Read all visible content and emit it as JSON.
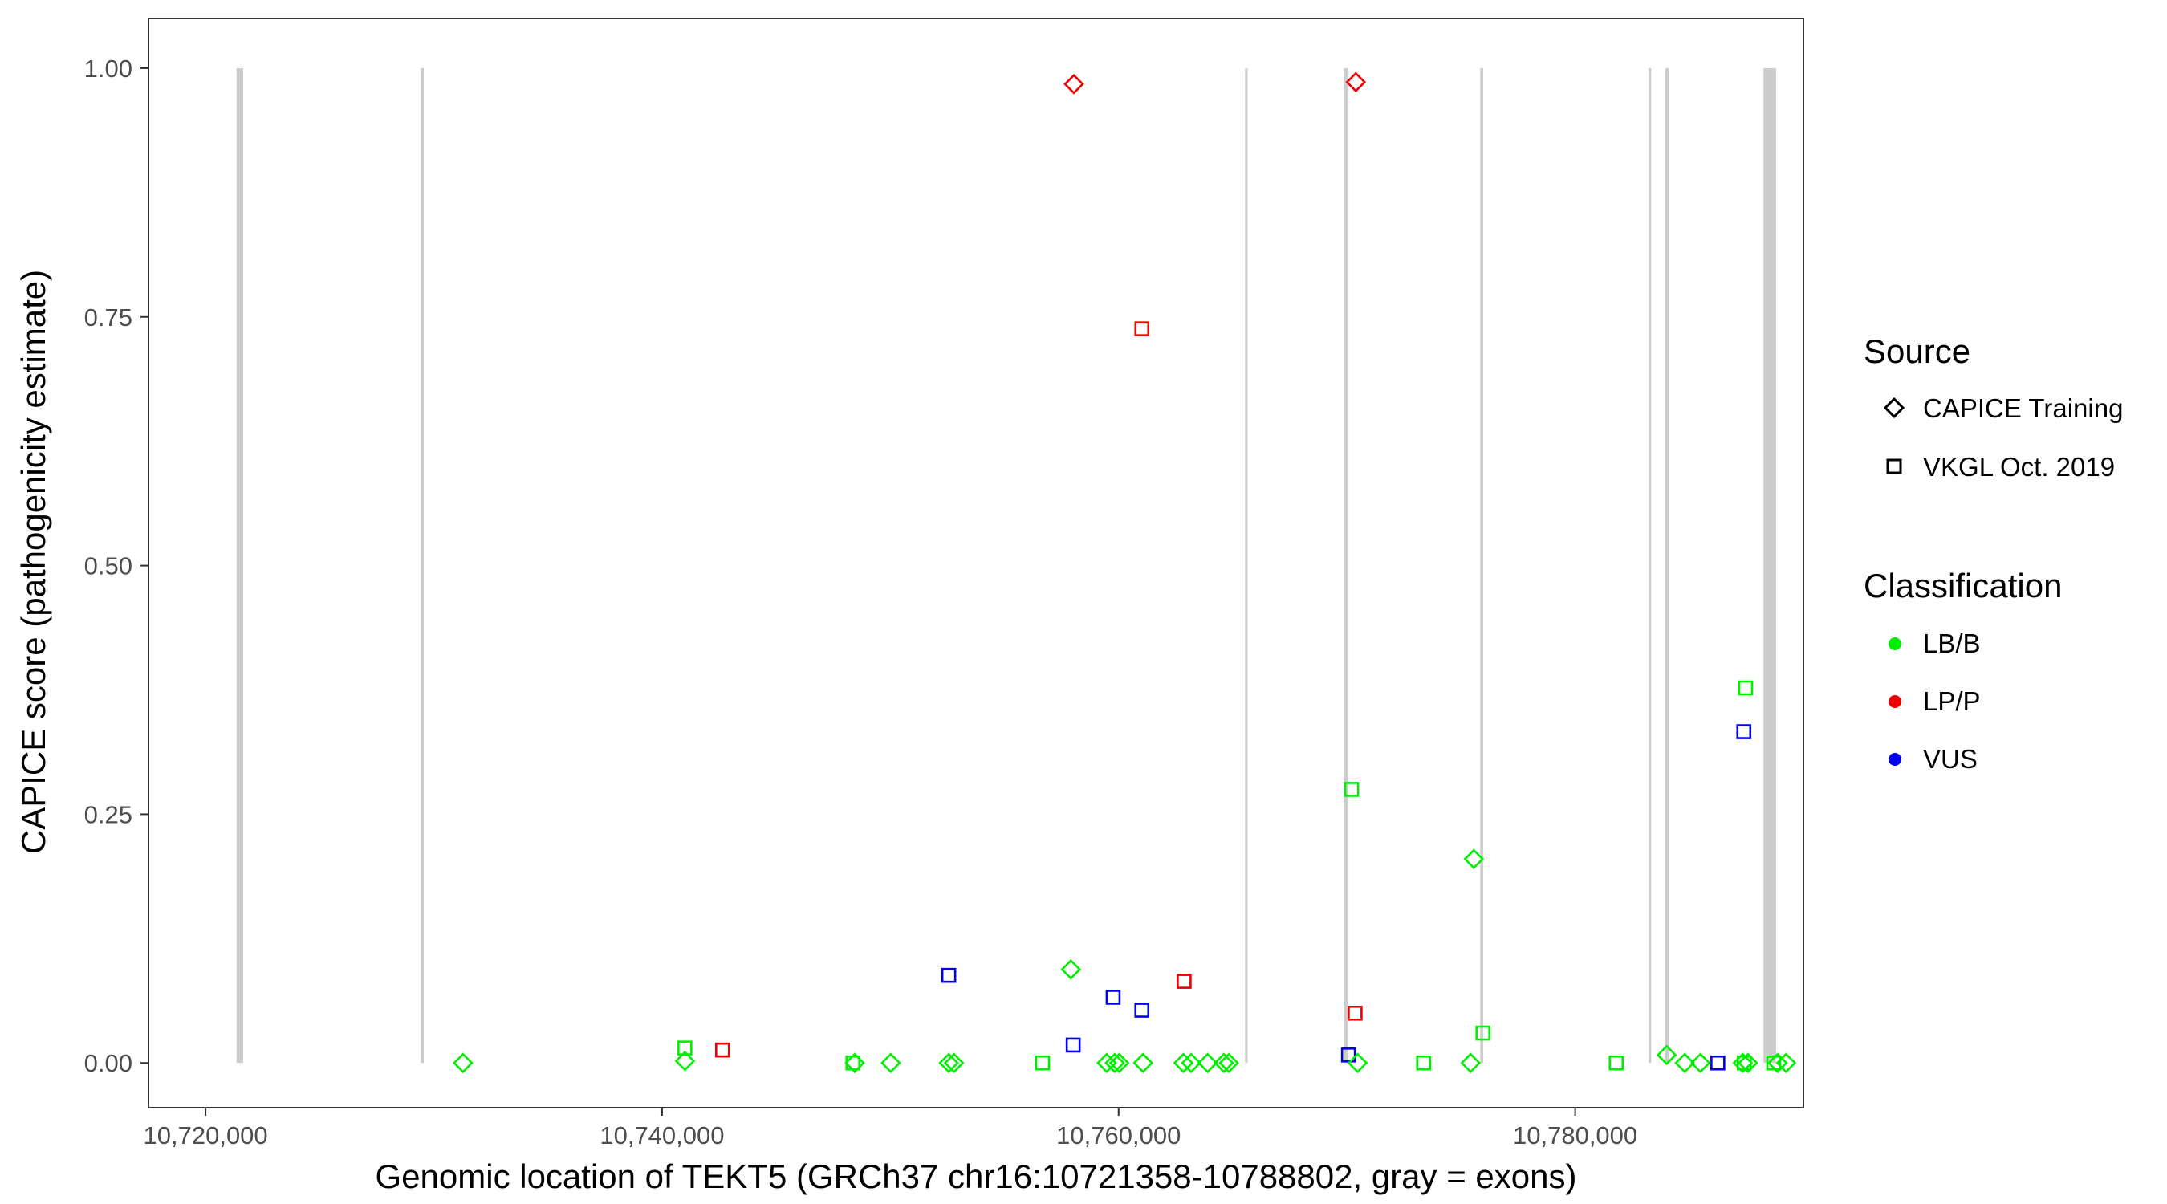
{
  "chart_data": {
    "type": "scatter",
    "xlabel": "Genomic location of TEKT5 (GRCh37 chr16:10721358-10788802, gray = exons)",
    "ylabel": "CAPICE score (pathogenicity estimate)",
    "xlim": [
      10717500,
      10790000
    ],
    "ylim": [
      -0.045,
      1.05
    ],
    "x_ticks": [
      10720000,
      10740000,
      10760000,
      10780000
    ],
    "x_tick_labels": [
      "10,720,000",
      "10,740,000",
      "10,760,000",
      "10,780,000"
    ],
    "y_ticks": [
      0,
      0.25,
      0.5,
      0.75,
      1.0
    ],
    "y_tick_labels": [
      "0.00",
      "0.25",
      "0.50",
      "0.75",
      "1.00"
    ],
    "grid": false,
    "exons": [
      {
        "start": 10721358,
        "end": 10721650
      },
      {
        "start": 10729430,
        "end": 10729560
      },
      {
        "start": 10765540,
        "end": 10765650
      },
      {
        "start": 10769860,
        "end": 10770070
      },
      {
        "start": 10775840,
        "end": 10775970
      },
      {
        "start": 10783220,
        "end": 10783330
      },
      {
        "start": 10783950,
        "end": 10784110
      },
      {
        "start": 10788250,
        "end": 10788802
      }
    ],
    "legend": {
      "placement": "right",
      "source": {
        "title": "Source",
        "items": [
          {
            "label": "CAPICE Training",
            "shape": "diamond"
          },
          {
            "label": "VKGL Oct. 2019",
            "shape": "square"
          }
        ]
      },
      "classification": {
        "title": "Classification",
        "items": [
          {
            "label": "LB/B",
            "color": "#00ee00"
          },
          {
            "label": "LP/P",
            "color": "#ee0000"
          },
          {
            "label": "VUS",
            "color": "#0000ee"
          }
        ]
      }
    },
    "colors": {
      "LB/B": "#00ee00",
      "LP/P": "#ee0000",
      "VUS": "#0000ee",
      "exon": "#cccccc"
    },
    "series": [
      {
        "source": "CAPICE Training",
        "classification": "LP/P",
        "points": [
          [
            10758040,
            0.984
          ],
          [
            10770390,
            0.986
          ]
        ]
      },
      {
        "source": "VKGL Oct. 2019",
        "classification": "LP/P",
        "points": [
          [
            10761020,
            0.738
          ],
          [
            10742650,
            0.013
          ],
          [
            10762870,
            0.082
          ],
          [
            10770360,
            0.05
          ]
        ]
      },
      {
        "source": "VKGL Oct. 2019",
        "classification": "VUS",
        "points": [
          [
            10752560,
            0.088
          ],
          [
            10759760,
            0.066
          ],
          [
            10761020,
            0.053
          ],
          [
            10758010,
            0.018
          ],
          [
            10770070,
            0.008
          ],
          [
            10786250,
            0.0
          ],
          [
            10787390,
            0.333
          ]
        ]
      },
      {
        "source": "VKGL Oct. 2019",
        "classification": "LB/B",
        "points": [
          [
            10741000,
            0.015
          ],
          [
            10748360,
            0.0
          ],
          [
            10756670,
            0.0
          ],
          [
            10770210,
            0.275
          ],
          [
            10773360,
            0.0
          ],
          [
            10775960,
            0.03
          ],
          [
            10781800,
            0.0
          ],
          [
            10787470,
            0.377
          ],
          [
            10787410,
            0.0
          ],
          [
            10788700,
            0.0
          ]
        ]
      },
      {
        "source": "CAPICE Training",
        "classification": "LB/B",
        "points": [
          [
            10731280,
            0.0
          ],
          [
            10741000,
            0.002
          ],
          [
            10748440,
            0.0
          ],
          [
            10750020,
            0.0
          ],
          [
            10752560,
            0.0
          ],
          [
            10752790,
            0.0
          ],
          [
            10757910,
            0.094
          ],
          [
            10759480,
            0.0
          ],
          [
            10759830,
            0.0
          ],
          [
            10760030,
            0.0
          ],
          [
            10761070,
            0.0
          ],
          [
            10762840,
            0.0
          ],
          [
            10763180,
            0.0
          ],
          [
            10763900,
            0.0
          ],
          [
            10764610,
            0.0
          ],
          [
            10764830,
            0.0
          ],
          [
            10770470,
            0.0
          ],
          [
            10775420,
            0.0
          ],
          [
            10775560,
            0.205
          ],
          [
            10784010,
            0.008
          ],
          [
            10784800,
            0.0
          ],
          [
            10785490,
            0.0
          ],
          [
            10787340,
            0.0
          ],
          [
            10787570,
            0.0
          ],
          [
            10788870,
            0.0
          ],
          [
            10789240,
            0.0
          ]
        ]
      }
    ]
  }
}
